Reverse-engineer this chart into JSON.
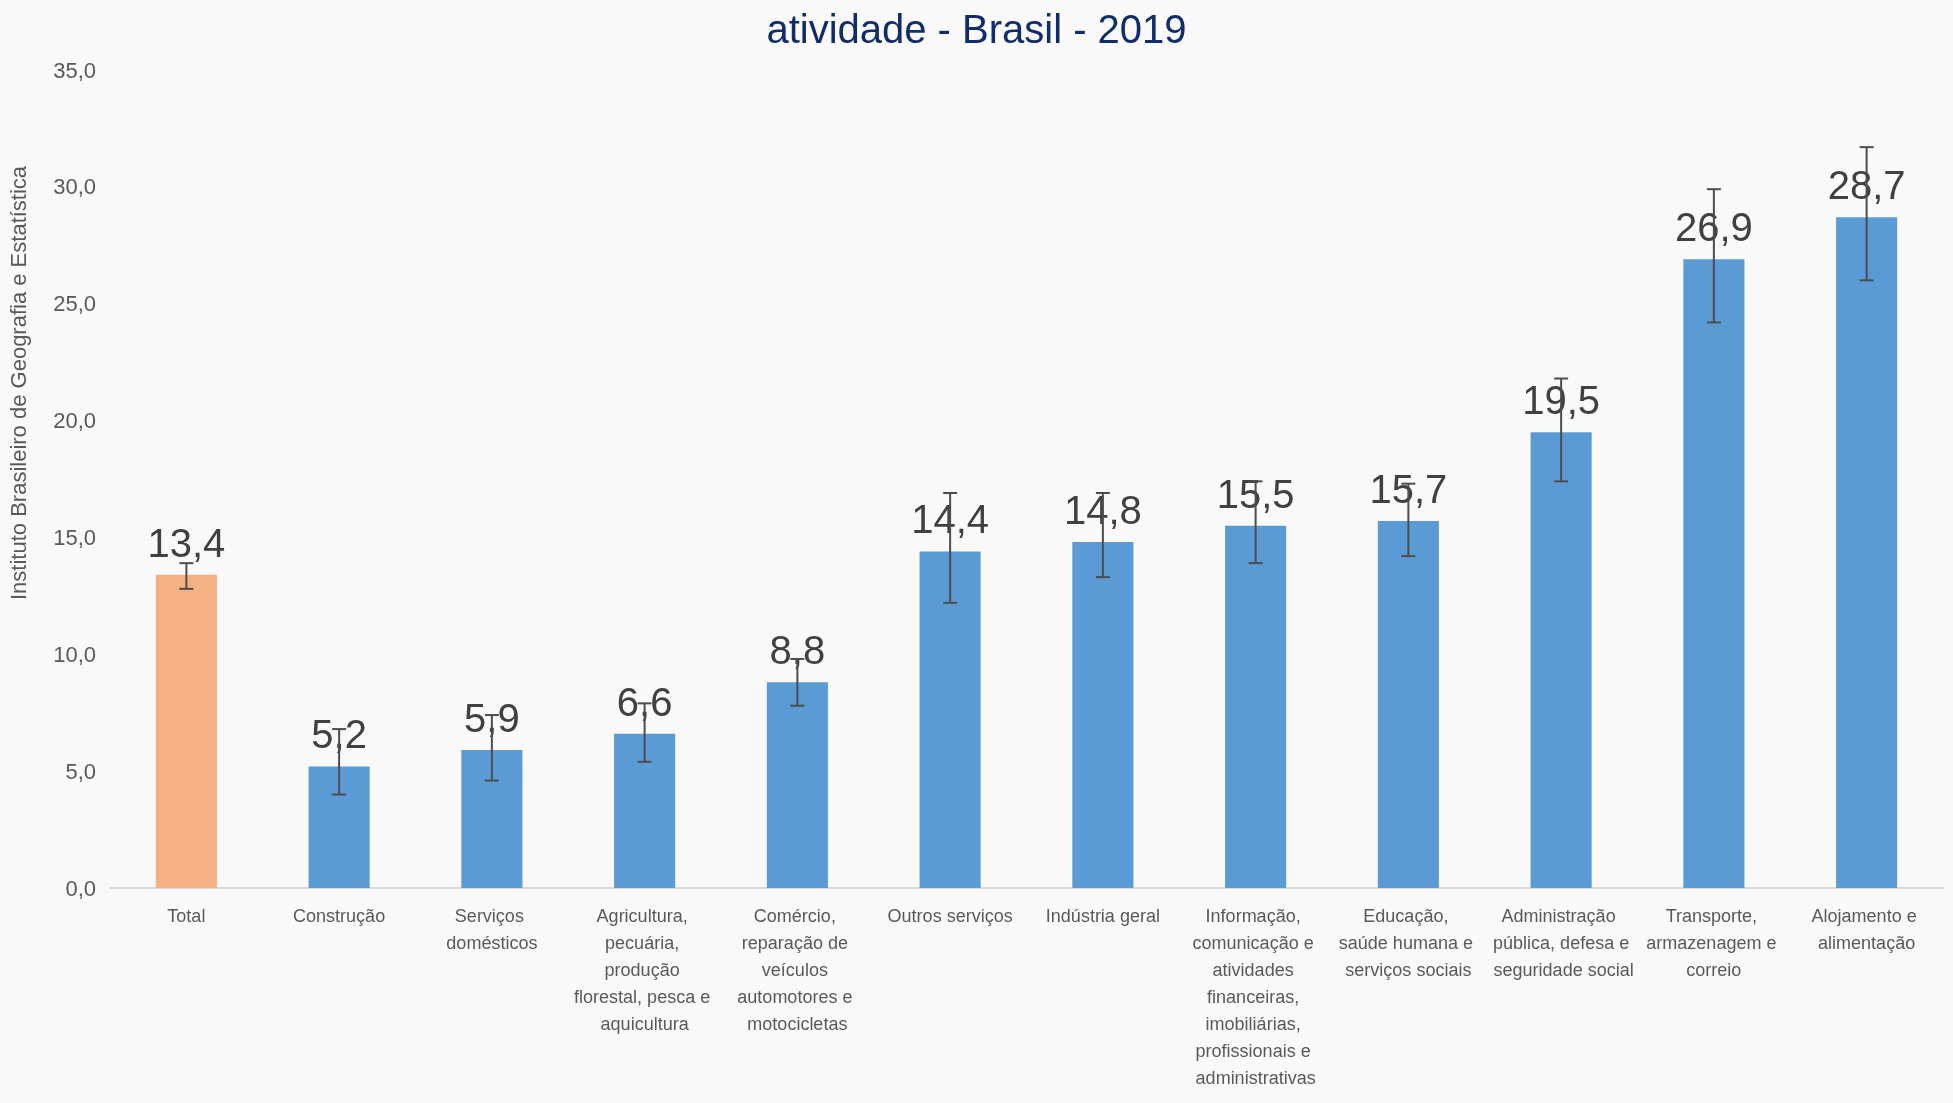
{
  "chart_data": {
    "type": "bar",
    "title": "atividade - Brasil - 2019",
    "annotations": [
      "Instituto Brasileiro de Geografia e Estatística"
    ],
    "categories": [
      "Total",
      "Construção",
      "Serviços domésticos",
      "Agricultura, pecuária, produção florestal, pesca e aquicultura",
      "Comércio, reparação de veículos automotores e motocicletas",
      "Outros serviços",
      "Indústria geral",
      "Informação, comunicação e atividades financeiras, imobiliárias, profissionais e administrativas",
      "Educação, saúde humana e serviços sociais",
      "Administração pública, defesa e seguridade social",
      "Transporte, armazenagem e correio",
      "Alojamento e alimentação"
    ],
    "values": [
      13.4,
      5.2,
      5.9,
      6.6,
      8.8,
      14.4,
      14.8,
      15.5,
      15.7,
      19.5,
      26.9,
      28.7
    ],
    "colors": [
      "#f4b183",
      "#5b9bd5",
      "#5b9bd5",
      "#5b9bd5",
      "#5b9bd5",
      "#5b9bd5",
      "#5b9bd5",
      "#5b9bd5",
      "#5b9bd5",
      "#5b9bd5",
      "#5b9bd5",
      "#5b9bd5"
    ],
    "errors": [
      [
        12.8,
        13.9
      ],
      [
        4.0,
        6.8
      ],
      [
        4.6,
        7.4
      ],
      [
        5.4,
        7.9
      ],
      [
        7.8,
        9.8
      ],
      [
        12.2,
        16.9
      ],
      [
        13.3,
        16.9
      ],
      [
        13.9,
        17.4
      ],
      [
        14.2,
        17.3
      ],
      [
        17.4,
        21.8
      ],
      [
        24.2,
        29.9
      ],
      [
        26.0,
        31.7
      ]
    ],
    "value_labels": [
      "13,4",
      "5,2",
      "5,9",
      "6,6",
      "8,8",
      "14,4",
      "14,8",
      "15,5",
      "15,7",
      "19,5",
      "26,9",
      "28,7"
    ],
    "ylim": [
      0,
      35
    ],
    "yticks": [
      {
        "value": 0,
        "label": "0,0"
      },
      {
        "value": 5,
        "label": "5,0"
      },
      {
        "value": 10,
        "label": "10,0"
      },
      {
        "value": 15,
        "label": "15,0"
      },
      {
        "value": 20,
        "label": "20,0"
      },
      {
        "value": 25,
        "label": "25,0"
      },
      {
        "value": 30,
        "label": "30,0"
      },
      {
        "value": 35,
        "label": "35,0"
      }
    ],
    "grid": false
  }
}
